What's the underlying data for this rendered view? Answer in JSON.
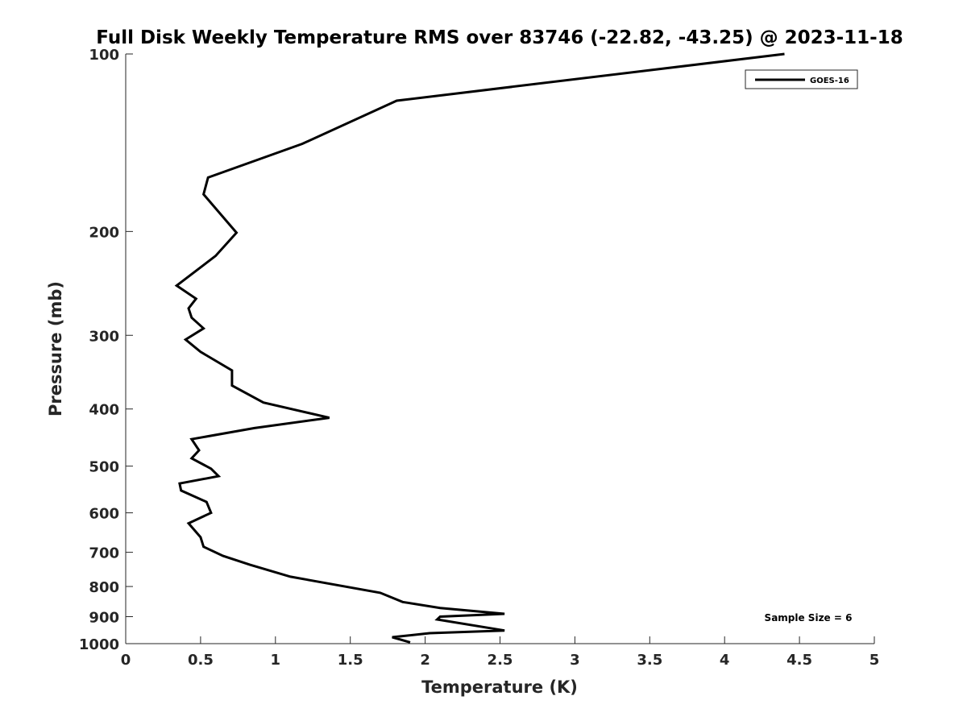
{
  "chart_data": {
    "type": "line",
    "title": "Full Disk Weekly Temperature RMS over 83746 (-22.82, -43.25) @ 2023-11-18",
    "xlabel": "Temperature (K)",
    "ylabel": "Pressure (mb)",
    "xlim": [
      0,
      5
    ],
    "ylim": [
      100,
      1000
    ],
    "y_scale": "log",
    "y_reversed": true,
    "x_ticks": [
      0,
      0.5,
      1,
      1.5,
      2,
      2.5,
      3,
      3.5,
      4,
      4.5,
      5
    ],
    "x_tick_labels": [
      "0",
      "0.5",
      "1",
      "1.5",
      "2",
      "2.5",
      "3",
      "3.5",
      "4",
      "4.5",
      "5"
    ],
    "y_ticks": [
      100,
      200,
      300,
      400,
      500,
      600,
      700,
      800,
      900,
      1000
    ],
    "y_tick_labels": [
      "100",
      "200",
      "300",
      "400",
      "500",
      "600",
      "700",
      "800",
      "900",
      "1000"
    ],
    "grid": false,
    "legend_position": "top-right",
    "annotation": "Sample Size = 6",
    "series": [
      {
        "name": "GOES-16",
        "color": "#000000",
        "x": [
          4.4,
          1.81,
          1.18,
          0.55,
          0.52,
          0.74,
          0.6,
          0.34,
          0.47,
          0.42,
          0.44,
          0.52,
          0.4,
          0.5,
          0.71,
          0.71,
          0.92,
          1.36,
          0.86,
          0.44,
          0.49,
          0.44,
          0.57,
          0.62,
          0.36,
          0.37,
          0.54,
          0.57,
          0.42,
          0.5,
          0.52,
          0.65,
          0.83,
          1.1,
          1.7,
          1.85,
          2.1,
          2.53,
          2.1,
          2.08,
          2.53,
          2.03,
          1.78,
          1.9
        ],
        "y": [
          100,
          120,
          142,
          162,
          173,
          201,
          220,
          247,
          260,
          270,
          280,
          292,
          305,
          320,
          344,
          365,
          390,
          414,
          431,
          450,
          470,
          485,
          505,
          520,
          535,
          550,
          575,
          600,
          625,
          660,
          685,
          710,
          735,
          770,
          820,
          850,
          870,
          890,
          900,
          910,
          950,
          960,
          975,
          995
        ]
      }
    ]
  }
}
